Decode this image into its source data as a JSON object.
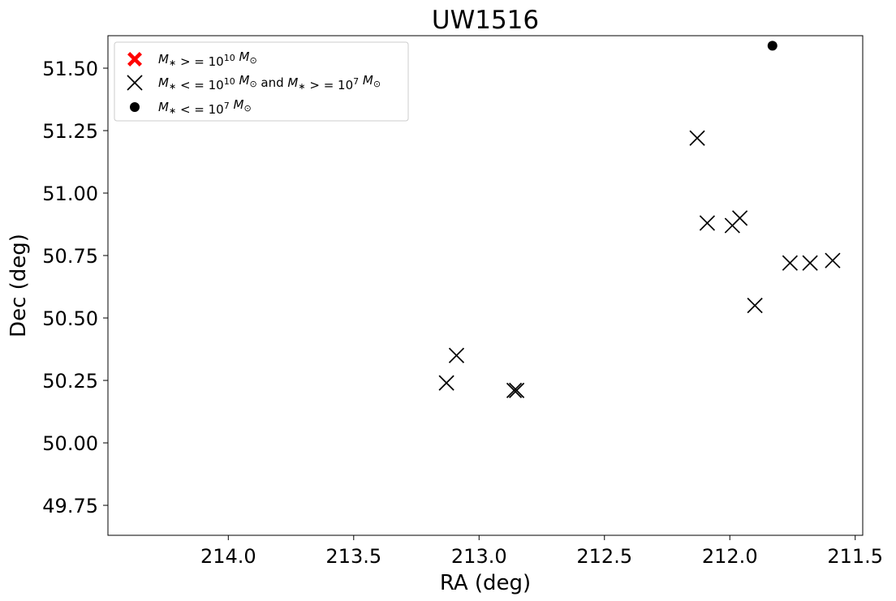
{
  "chart_data": {
    "type": "scatter",
    "title": "UW1516",
    "xlabel": "RA (deg)",
    "ylabel": "Dec (deg)",
    "xlim": [
      214.48,
      211.47
    ],
    "ylim": [
      49.63,
      51.63
    ],
    "x_inverted": true,
    "x_ticks": [
      214.0,
      213.5,
      213.0,
      212.5,
      212.0,
      211.5
    ],
    "x_tick_labels": [
      "214.0",
      "213.5",
      "213.0",
      "212.5",
      "212.0",
      "211.5"
    ],
    "y_ticks": [
      49.75,
      50.0,
      50.25,
      50.5,
      50.75,
      51.0,
      51.25,
      51.5
    ],
    "y_tick_labels": [
      "49.75",
      "50.00",
      "50.25",
      "50.50",
      "50.75",
      "51.00",
      "51.25",
      "51.50"
    ],
    "grid": false,
    "legend_position": "upper-left",
    "series": [
      {
        "legend_parts": [
          {
            "t": "M",
            "it": true
          },
          {
            "t": "∗",
            "sub": true
          },
          {
            "t": " > = 10"
          },
          {
            "t": "10",
            "sup": true
          },
          {
            "t": " "
          },
          {
            "t": "M",
            "it": true
          },
          {
            "t": "⊙",
            "sub": true
          }
        ],
        "marker": "filled-x",
        "color": "#ff0000",
        "points": []
      },
      {
        "legend_parts": [
          {
            "t": "M",
            "it": true
          },
          {
            "t": "∗",
            "sub": true
          },
          {
            "t": " < = 10"
          },
          {
            "t": "10",
            "sup": true
          },
          {
            "t": " "
          },
          {
            "t": "M",
            "it": true
          },
          {
            "t": "⊙",
            "sub": true
          },
          {
            "t": "  and  "
          },
          {
            "t": "M",
            "it": true
          },
          {
            "t": "∗",
            "sub": true
          },
          {
            "t": " > = 10"
          },
          {
            "t": "7",
            "sup": true
          },
          {
            "t": " "
          },
          {
            "t": "M",
            "it": true
          },
          {
            "t": "⊙",
            "sub": true
          }
        ],
        "marker": "x",
        "color": "#000000",
        "points": [
          {
            "x": 213.13,
            "y": 50.24
          },
          {
            "x": 213.09,
            "y": 50.35
          },
          {
            "x": 212.86,
            "y": 50.21
          },
          {
            "x": 212.85,
            "y": 50.21
          },
          {
            "x": 212.13,
            "y": 51.22
          },
          {
            "x": 212.09,
            "y": 50.88
          },
          {
            "x": 211.99,
            "y": 50.87
          },
          {
            "x": 211.96,
            "y": 50.9
          },
          {
            "x": 211.9,
            "y": 50.55
          },
          {
            "x": 211.76,
            "y": 50.72
          },
          {
            "x": 211.68,
            "y": 50.72
          },
          {
            "x": 211.59,
            "y": 50.73
          }
        ]
      },
      {
        "legend_parts": [
          {
            "t": "M",
            "it": true
          },
          {
            "t": "∗",
            "sub": true
          },
          {
            "t": " < = 10"
          },
          {
            "t": "7",
            "sup": true
          },
          {
            "t": " "
          },
          {
            "t": "M",
            "it": true
          },
          {
            "t": "⊙",
            "sub": true
          }
        ],
        "marker": "dot",
        "color": "#000000",
        "points": [
          {
            "x": 211.83,
            "y": 51.59
          }
        ]
      }
    ]
  }
}
